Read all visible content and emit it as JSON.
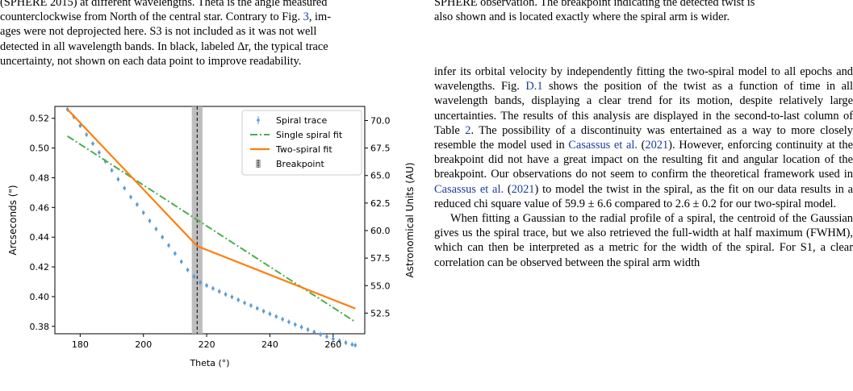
{
  "left_caption": {
    "line1": "(SPHERE 2015) at different wavelengths. Theta is the angle measured",
    "line2a": "counterclockwise from North of the central star. Contrary to Fig. ",
    "line2_ref": "3",
    "line2b": ", im-",
    "line3": "ages were not deprojected here. S3 is not included as it was not well",
    "line4": "detected in all wavelength bands. In black, labeled Δr, the typical trace",
    "line5": "uncertainty, not shown on each data point to improve readability."
  },
  "right_caption": {
    "line1": "SPHERE observation. The breakpoint indicating the detected twist is",
    "line2": "also shown and is located exactly where the spiral arm is wider."
  },
  "body": {
    "p1_a": "infer its orbital velocity by independently fitting the two-spiral model to all epochs and wavelengths. Fig. ",
    "p1_ref_fig": "D.1",
    "p1_b": " shows the position of the twist as a function of time in all wavelength bands, displaying a clear trend for its motion, despite relatively large uncertainties. The results of this analysis are displayed in the second-to-last column of Table ",
    "p1_ref_table": "2",
    "p1_c": ". The possibility of a discontinuity was entertained as a way to more closely resemble the model used in ",
    "p1_ref_cas1": "Casassus et al.",
    "p1_ref_cas1_year": "2021",
    "p1_d": "). However, enforcing continuity at the breakpoint did not have a great impact on the resulting fit and angular location of the breakpoint. Our observations do not seem to confirm the theoretical framework used in ",
    "p1_ref_cas2": "Casassus et al.",
    "p1_ref_cas2_year": "2021",
    "p1_e": ") to model the twist in the spiral, as the fit on our data results in a reduced chi square value of 59.9 ± 6.6 compared to 2.6 ± 0.2 for our two-spiral model.",
    "p2": "When fitting a Gaussian to the radial profile of a spiral, the centroid of the Gaussian gives us the spiral trace, but we also retrieved the full-width at half maximum (FWHM), which can then be interpreted as a metric for the width of the spiral. For S1, a clear correlation can be observed between the spiral arm width"
  },
  "chart_data": {
    "type": "line",
    "xlabel": "Theta (°)",
    "ylabel_left": "Arcseconds (\")",
    "ylabel_right": "Astronomical Units (AU)",
    "xlim": [
      172,
      270
    ],
    "ylim": [
      0.375,
      0.528
    ],
    "x_ticks": [
      180,
      200,
      220,
      240,
      260
    ],
    "y_ticks": [
      0.38,
      0.4,
      0.42,
      0.44,
      0.46,
      0.48,
      0.5,
      0.52
    ],
    "y2_ticks": [
      52.5,
      55.0,
      57.5,
      60.0,
      62.5,
      65.0,
      67.5,
      70.0
    ],
    "y2_scale_au_per_arcsec": 135,
    "grid": false,
    "legend_position": "top-right",
    "breakpoint": {
      "x": 217,
      "band": [
        215.3,
        218.7
      ]
    },
    "colors": {
      "trace": "#5b9bd5",
      "single": "#4cae4c",
      "two": "#ff7f0e",
      "breakpoint_band": "#b3b3b3"
    },
    "legend": [
      {
        "key": "trace",
        "label": "Spiral trace"
      },
      {
        "key": "single",
        "label": "Single spiral fit"
      },
      {
        "key": "two",
        "label": "Two-spiral fit"
      },
      {
        "key": "breakpoint",
        "label": "Breakpoint"
      }
    ],
    "series": [
      {
        "name": "Spiral trace",
        "x": [
          176,
          178,
          180,
          182,
          184,
          186,
          188,
          190,
          192,
          194,
          196,
          198,
          200,
          202,
          204,
          206,
          208,
          210,
          212,
          214,
          216,
          218,
          220,
          222,
          224,
          226,
          228,
          230,
          232,
          234,
          236,
          238,
          240,
          242,
          244,
          246,
          248,
          250,
          252,
          254,
          256,
          258,
          260,
          262,
          264,
          266,
          267
        ],
        "y": [
          0.526,
          0.521,
          0.515,
          0.509,
          0.503,
          0.497,
          0.491,
          0.485,
          0.479,
          0.473,
          0.467,
          0.462,
          0.4565,
          0.451,
          0.4455,
          0.44,
          0.4345,
          0.429,
          0.4235,
          0.418,
          0.4135,
          0.4095,
          0.4075,
          0.4055,
          0.4035,
          0.4015,
          0.3998,
          0.3978,
          0.3958,
          0.394,
          0.3921,
          0.3902,
          0.3884,
          0.3866,
          0.3848,
          0.383,
          0.3812,
          0.3795,
          0.3778,
          0.3762,
          0.3746,
          0.3731,
          0.3716,
          0.3703,
          0.369,
          0.3678,
          0.3673
        ]
      },
      {
        "name": "Single spiral fit",
        "x": [
          176,
          267
        ],
        "y": [
          0.508,
          0.383
        ]
      },
      {
        "name": "Two-spiral fit",
        "x": [
          176,
          217,
          267
        ],
        "y": [
          0.526,
          0.434,
          0.392
        ]
      }
    ]
  }
}
